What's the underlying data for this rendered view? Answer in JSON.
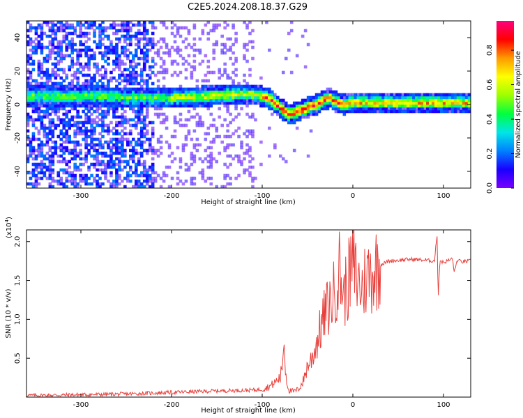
{
  "title": "C2E5.2024.208.18.37.G29",
  "chart_data": [
    {
      "type": "heatmap",
      "xlabel": "Height of straight line (km)",
      "ylabel": "Frequency (Hz)",
      "xlim": [
        -360,
        130
      ],
      "ylim": [
        -50,
        50
      ],
      "xticks": [
        -300,
        -200,
        -100,
        0,
        100
      ],
      "yticks": [
        -40,
        -20,
        0,
        20,
        40
      ],
      "colorbar": {
        "label": "Normalized spectral amplitude",
        "range": [
          0.0,
          0.97
        ],
        "ticks": [
          0.0,
          0.2,
          0.4,
          0.6,
          0.8
        ],
        "colormap": [
          "#ffffff",
          "#7a00ff",
          "#1a00ff",
          "#0080ff",
          "#00e6e6",
          "#00ff40",
          "#9fff00",
          "#ffff00",
          "#ff9900",
          "#ff0000",
          "#ff0080"
        ]
      },
      "ridge": {
        "x": [
          -360,
          -320,
          -280,
          -240,
          -200,
          -160,
          -130,
          -110,
          -100,
          -90,
          -80,
          -70,
          -60,
          -50,
          -40,
          -30,
          -25,
          -20,
          -10,
          0,
          20,
          60,
          100,
          130
        ],
        "y": [
          5,
          5,
          5,
          4,
          4,
          5,
          6,
          6,
          5,
          3,
          -2,
          -6,
          -4,
          -2,
          0,
          3,
          4,
          2,
          0,
          1,
          1,
          1,
          1,
          1
        ]
      }
    },
    {
      "type": "line",
      "xlabel": "Height of straight line (km)",
      "ylabel": "SNR (10 * v/v)",
      "scale_label": "(x10",
      "scale_exp": "4",
      "scale_close": ")",
      "xlim": [
        -360,
        130
      ],
      "ylim": [
        0,
        21500
      ],
      "xticks": [
        -300,
        -200,
        -100,
        0,
        100
      ],
      "yticks": [
        5000,
        10000,
        15000,
        20000
      ],
      "ytick_labels": [
        "0.5",
        "1.0",
        "1.5",
        "2.0"
      ],
      "color": "#e8403c",
      "series": [
        {
          "x": [
            -360,
            -300,
            -250,
            -200,
            -150,
            -110,
            -100,
            -90,
            -80,
            -78,
            -76,
            -74,
            -72,
            -70,
            -65,
            -60,
            -55,
            -50,
            -45,
            -40,
            -35,
            -30,
            -25,
            -20,
            -15,
            -10,
            -5,
            0,
            5,
            10,
            15,
            20,
            25,
            30,
            40,
            50,
            60,
            70,
            80,
            90,
            93,
            94,
            96,
            100,
            110,
            112,
            115,
            120,
            130
          ],
          "y": [
            200,
            300,
            400,
            600,
            800,
            900,
            1000,
            1500,
            2500,
            4000,
            7500,
            3000,
            1500,
            800,
            700,
            1000,
            2000,
            4000,
            5000,
            7000,
            9000,
            11000,
            12000,
            13500,
            16500,
            13000,
            15000,
            17000,
            15000,
            14000,
            15500,
            16000,
            16500,
            17000,
            17500,
            17600,
            17700,
            17700,
            17600,
            17500,
            21000,
            12500,
            17600,
            17300,
            17800,
            16000,
            17600,
            17400,
            17500
          ]
        }
      ]
    }
  ]
}
